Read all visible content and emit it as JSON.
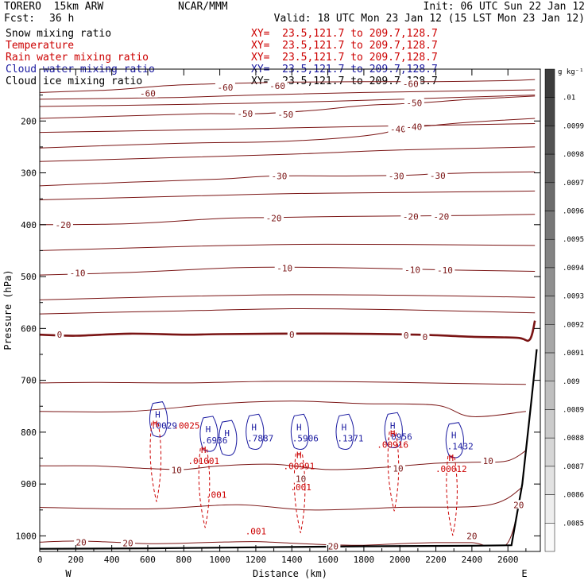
{
  "header": {
    "model": "TORERO  15km ARW",
    "center": "NCAR/MMM",
    "init": "Init: 06 UTC Sun 22 Jan 12",
    "fcst_label": "Fcst:",
    "fcst_value": "36 h",
    "valid": "Valid: 18 UTC Mon 23 Jan 12 (15 LST Mon 23 Jan 12)"
  },
  "fields": [
    {
      "name": "Snow mixing ratio",
      "color": "#000000",
      "xy": "XY=  23.5,121.7 to 209.7,128.7",
      "xy_color": "#cc0000"
    },
    {
      "name": "Temperature",
      "color": "#cc0000",
      "xy": "XY=  23.5,121.7 to 209.7,128.7",
      "xy_color": "#cc0000"
    },
    {
      "name": "Rain water mixing ratio",
      "color": "#cc0000",
      "xy": "XY=  23.5,121.7 to 209.7,128.7",
      "xy_color": "#cc0000"
    },
    {
      "name": "Cloud water mixing ratio",
      "color": "#1a1aa0",
      "xy": "XY=  23.5,121.7 to 209.7,128.7",
      "xy_color": "#1a1aa0"
    },
    {
      "name": "Cloud ice mixing ratio",
      "color": "#000000",
      "xy": "XY=  23.5,121.7 to 209.7,128.7",
      "xy_color": "#000000"
    }
  ],
  "colorbar": {
    "unit": "g kg⁻¹",
    "labels": [
      ".01",
      ".0099",
      ".0098",
      ".0097",
      ".0096",
      ".0095",
      ".0094",
      ".0093",
      ".0092",
      ".0091",
      ".009",
      ".0089",
      ".0088",
      ".0087",
      ".0086",
      ".0085"
    ]
  },
  "chart_data": {
    "type": "contour cross-section",
    "xlabel": "Distance (km)",
    "ylabel": "Pressure (hPa)",
    "xlim": [
      0,
      2780
    ],
    "ylim": [
      1030,
      100
    ],
    "x_ticks": [
      0,
      200,
      400,
      600,
      800,
      1000,
      1200,
      1400,
      1600,
      1800,
      2000,
      2200,
      2400,
      2600
    ],
    "y_ticks": [
      200,
      300,
      400,
      500,
      600,
      700,
      800,
      900,
      1000
    ],
    "x_end_labels": {
      "left": "W",
      "right": "E"
    },
    "temperature_contours": [
      {
        "value": -60,
        "label": "-60",
        "points": [
          [
            0,
            145
          ],
          [
            400,
            140
          ],
          [
            700,
            132
          ],
          [
            1000,
            128
          ],
          [
            1400,
            125
          ],
          [
            1800,
            124
          ],
          [
            2200,
            124
          ],
          [
            2600,
            122
          ],
          [
            2750,
            120
          ]
        ],
        "label_at": [
          [
            600,
            147
          ],
          [
            1030,
            135
          ],
          [
            1320,
            132
          ],
          [
            2060,
            128
          ]
        ]
      },
      {
        "value": -50,
        "label": "-50",
        "points": [
          [
            0,
            195
          ],
          [
            500,
            190
          ],
          [
            900,
            186
          ],
          [
            1200,
            186
          ],
          [
            1500,
            180
          ],
          [
            1800,
            170
          ],
          [
            2000,
            167
          ],
          [
            2200,
            163
          ],
          [
            2400,
            158
          ],
          [
            2750,
            152
          ]
        ],
        "label_at": [
          [
            1140,
            186
          ],
          [
            1365,
            187
          ],
          [
            2080,
            165
          ]
        ]
      },
      {
        "value": -40,
        "label": "-40",
        "points": [
          [
            0,
            252
          ],
          [
            500,
            246
          ],
          [
            900,
            242
          ],
          [
            1300,
            240
          ],
          [
            1700,
            232
          ],
          [
            1900,
            224
          ],
          [
            2000,
            215
          ],
          [
            2200,
            208
          ],
          [
            2400,
            202
          ],
          [
            2750,
            195
          ]
        ],
        "label_at": [
          [
            1990,
            216
          ],
          [
            2080,
            211
          ]
        ]
      },
      {
        "value": -30,
        "label": "-30",
        "points": [
          [
            0,
            325
          ],
          [
            500,
            318
          ],
          [
            1000,
            312
          ],
          [
            1300,
            306
          ],
          [
            1700,
            306
          ],
          [
            2000,
            305
          ],
          [
            2200,
            302
          ],
          [
            2400,
            300
          ],
          [
            2750,
            298
          ]
        ],
        "label_at": [
          [
            1330,
            306
          ],
          [
            1980,
            306
          ],
          [
            2210,
            305
          ]
        ]
      },
      {
        "value": -20,
        "label": "-20",
        "points": [
          [
            0,
            400
          ],
          [
            500,
            398
          ],
          [
            1000,
            388
          ],
          [
            1300,
            386
          ],
          [
            1700,
            384
          ],
          [
            2100,
            383
          ],
          [
            2400,
            382
          ],
          [
            2750,
            380
          ]
        ],
        "label_at": [
          [
            130,
            400
          ],
          [
            1300,
            387
          ],
          [
            2060,
            384
          ],
          [
            2230,
            384
          ]
        ]
      },
      {
        "value": -10,
        "label": "-10",
        "points": [
          [
            0,
            497
          ],
          [
            500,
            492
          ],
          [
            1000,
            484
          ],
          [
            1300,
            482
          ],
          [
            1700,
            483
          ],
          [
            2100,
            486
          ],
          [
            2400,
            488
          ],
          [
            2750,
            490
          ]
        ],
        "label_at": [
          [
            210,
            493
          ],
          [
            1360,
            484
          ],
          [
            2070,
            487
          ],
          [
            2250,
            488
          ]
        ]
      },
      {
        "value": 0,
        "label": "0",
        "bold": true,
        "points": [
          [
            0,
            612
          ],
          [
            200,
            614
          ],
          [
            500,
            610
          ],
          [
            800,
            612
          ],
          [
            1000,
            611
          ],
          [
            1300,
            610
          ],
          [
            1700,
            610
          ],
          [
            2100,
            612
          ],
          [
            2400,
            616
          ],
          [
            2650,
            618
          ],
          [
            2720,
            622
          ],
          [
            2750,
            585
          ]
        ],
        "label_at": [
          [
            110,
            612
          ],
          [
            1400,
            612
          ],
          [
            2035,
            613
          ],
          [
            2140,
            616
          ]
        ]
      },
      {
        "value": 10,
        "label": "10",
        "points": [
          [
            0,
            865
          ],
          [
            300,
            865
          ],
          [
            600,
            870
          ],
          [
            800,
            872
          ],
          [
            1000,
            865
          ],
          [
            1300,
            862
          ],
          [
            1600,
            872
          ],
          [
            1900,
            868
          ],
          [
            2200,
            860
          ],
          [
            2400,
            858
          ],
          [
            2600,
            855
          ],
          [
            2720,
            830
          ]
        ],
        "label_at": [
          [
            760,
            873
          ],
          [
            1450,
            890
          ],
          [
            1990,
            870
          ],
          [
            2490,
            855
          ]
        ]
      },
      {
        "value": 20,
        "label": "20",
        "points": [
          [
            0,
            1012
          ],
          [
            200,
            1010
          ],
          [
            400,
            1012
          ],
          [
            600,
            1015
          ],
          [
            800,
            1014
          ],
          [
            1000,
            1012
          ],
          [
            1200,
            1011
          ],
          [
            1400,
            1014
          ],
          [
            1600,
            1017
          ],
          [
            1800,
            1018
          ],
          [
            2000,
            1015
          ],
          [
            2200,
            1013
          ],
          [
            2400,
            1013
          ],
          [
            2600,
            1013
          ],
          [
            2700,
            860
          ]
        ],
        "label_at": [
          [
            230,
            1012
          ],
          [
            490,
            1014
          ],
          [
            1630,
            1020
          ],
          [
            2400,
            1000
          ],
          [
            2660,
            940
          ]
        ]
      }
    ],
    "temperature_extra_lines": [
      [
        [
          0,
          158
        ],
        [
          700,
          155
        ],
        [
          1200,
          150
        ],
        [
          1800,
          145
        ],
        [
          2750,
          140
        ]
      ],
      [
        [
          0,
          172
        ],
        [
          800,
          168
        ],
        [
          1400,
          164
        ],
        [
          2000,
          158
        ],
        [
          2750,
          150
        ]
      ],
      [
        [
          0,
          222
        ],
        [
          700,
          218
        ],
        [
          1300,
          214
        ],
        [
          1900,
          210
        ],
        [
          2750,
          205
        ]
      ],
      [
        [
          0,
          278
        ],
        [
          800,
          270
        ],
        [
          1400,
          264
        ],
        [
          2000,
          256
        ],
        [
          2750,
          250
        ]
      ],
      [
        [
          0,
          352
        ],
        [
          800,
          345
        ],
        [
          1400,
          340
        ],
        [
          2000,
          338
        ],
        [
          2750,
          335
        ]
      ],
      [
        [
          0,
          450
        ],
        [
          800,
          442
        ],
        [
          1400,
          438
        ],
        [
          2000,
          438
        ],
        [
          2750,
          440
        ]
      ],
      [
        [
          0,
          545
        ],
        [
          800,
          538
        ],
        [
          1400,
          535
        ],
        [
          2000,
          536
        ],
        [
          2750,
          540
        ]
      ],
      [
        [
          0,
          572
        ],
        [
          800,
          566
        ],
        [
          1400,
          562
        ],
        [
          2000,
          564
        ],
        [
          2750,
          570
        ]
      ],
      [
        [
          0,
          705
        ],
        [
          300,
          704
        ],
        [
          800,
          705
        ],
        [
          1300,
          702
        ],
        [
          1800,
          703
        ],
        [
          2300,
          706
        ],
        [
          2700,
          708
        ]
      ],
      [
        [
          0,
          760
        ],
        [
          500,
          760
        ],
        [
          1000,
          745
        ],
        [
          1400,
          740
        ],
        [
          1800,
          745
        ],
        [
          2200,
          748
        ],
        [
          2400,
          770
        ],
        [
          2700,
          760
        ]
      ],
      [
        [
          0,
          945
        ],
        [
          600,
          948
        ],
        [
          1100,
          940
        ],
        [
          1500,
          950
        ],
        [
          2000,
          945
        ],
        [
          2500,
          940
        ],
        [
          2700,
          900
        ]
      ]
    ],
    "ground": [
      [
        0,
        1025
      ],
      [
        600,
        1024
      ],
      [
        1200,
        1022
      ],
      [
        1800,
        1020
      ],
      [
        2400,
        1019
      ],
      [
        2620,
        1018
      ],
      [
        2680,
        900
      ],
      [
        2730,
        740
      ],
      [
        2760,
        640
      ]
    ],
    "cloud_water": [
      {
        "label": "H",
        "x": 655,
        "p": 772,
        "val": ".0029",
        "val2": ".0025"
      },
      {
        "label": "H",
        "x": 935,
        "p": 800,
        "val": ".6936"
      },
      {
        "label": "H",
        "x": 1040,
        "p": 808
      },
      {
        "label": "H",
        "x": 1190,
        "p": 796,
        "val": ".7887"
      },
      {
        "label": "H",
        "x": 1440,
        "p": 796,
        "val": ".5906"
      },
      {
        "label": "H",
        "x": 1690,
        "p": 796,
        "val": ".1371"
      },
      {
        "label": "H",
        "x": 1960,
        "p": 793,
        "val": ".0956"
      },
      {
        "label": "H",
        "x": 2300,
        "p": 812,
        "val": ".1432"
      }
    ],
    "rain_water": [
      {
        "label": "H",
        "x": 640,
        "p": 775
      },
      {
        "label": "H",
        "x": 910,
        "p": 825,
        "val": ".01001"
      },
      {
        "label": "H",
        "x": 1440,
        "p": 835,
        "val": ".00991"
      },
      {
        "label": "H",
        "x": 1960,
        "p": 793,
        "val": ".00916"
      },
      {
        "label": "H",
        "x": 2285,
        "p": 840,
        "val": ".00012"
      },
      {
        "label": "",
        "x": 980,
        "p": 890,
        "val": ".001"
      },
      {
        "label": "",
        "x": 1450,
        "p": 875,
        "val": ".001"
      },
      {
        "label": "",
        "x": 1200,
        "p": 960,
        "val": ".001"
      }
    ]
  }
}
